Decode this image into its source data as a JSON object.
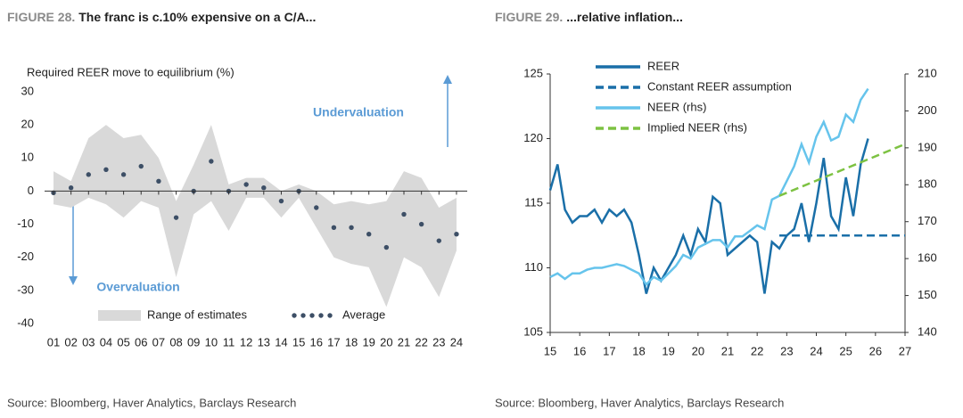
{
  "chart_data": [
    {
      "type": "line",
      "figure_label": "FIGURE 28.",
      "title": "The franc is c.10% expensive on a C/A...",
      "ylabel": "Required REER move to equilibrium (%)",
      "source": "Source: Bloomberg, Haver Analytics, Barclays Research",
      "categories": [
        "01",
        "02",
        "03",
        "04",
        "05",
        "06",
        "07",
        "08",
        "09",
        "10",
        "11",
        "12",
        "13",
        "14",
        "15",
        "16",
        "17",
        "18",
        "19",
        "20",
        "21",
        "22",
        "23",
        "24"
      ],
      "series": [
        {
          "name": "Range of estimates",
          "color": "#d9d9d9",
          "high": [
            6,
            3,
            16,
            20,
            16,
            17,
            10,
            -3,
            8,
            20,
            2,
            4,
            4,
            0,
            2,
            0,
            -4,
            -3,
            -4,
            -3,
            6,
            4,
            -5,
            -2
          ],
          "low": [
            -4,
            -5,
            -2,
            -4,
            -8,
            -3,
            -5,
            -26,
            -7,
            -3,
            -12,
            -2,
            -2,
            -8,
            -2,
            -11,
            -20,
            -22,
            -23,
            -35,
            -20,
            -23,
            -32,
            -18
          ]
        },
        {
          "name": "Average",
          "color": "#3d4f66",
          "values": [
            -0.5,
            1,
            5,
            6.5,
            5,
            7.5,
            3,
            -8,
            0,
            9,
            0,
            2,
            1,
            -3,
            0,
            -5,
            -11,
            -11,
            -13,
            -17,
            -7,
            -10,
            -15,
            -13
          ]
        }
      ],
      "ylim": [
        -40,
        30
      ],
      "yticks": [
        -40,
        -30,
        -20,
        -10,
        0,
        10,
        20,
        30
      ],
      "annotations": [
        "Undervaluation",
        "Overvaluation"
      ]
    },
    {
      "type": "line",
      "figure_label": "FIGURE 29.",
      "title": "...relative inflation...",
      "source": "Source: Bloomberg, Haver Analytics, Barclays Research",
      "xlim": [
        2015,
        2027
      ],
      "xticks": [
        {
          "value": 2015,
          "label": "15"
        },
        {
          "value": 2016,
          "label": "16"
        },
        {
          "value": 2017,
          "label": "17"
        },
        {
          "value": 2018,
          "label": "18"
        },
        {
          "value": 2019,
          "label": "19"
        },
        {
          "value": 2020,
          "label": "20"
        },
        {
          "value": 2021,
          "label": "21"
        },
        {
          "value": 2022,
          "label": "22"
        },
        {
          "value": 2023,
          "label": "23"
        },
        {
          "value": 2024,
          "label": "24"
        },
        {
          "value": 2025,
          "label": "25"
        },
        {
          "value": 2026,
          "label": "26"
        },
        {
          "value": 2027,
          "label": "27"
        }
      ],
      "ylim": [
        105,
        125
      ],
      "yticks": [
        105,
        110,
        115,
        120,
        125
      ],
      "y2lim": [
        140,
        210
      ],
      "y2ticks": [
        140,
        150,
        160,
        170,
        180,
        190,
        200,
        210
      ],
      "series": [
        {
          "name": "REER",
          "color": "#1a6fa8",
          "style": "solid",
          "x": [
            2015,
            2015.25,
            2015.5,
            2015.75,
            2016,
            2016.25,
            2016.5,
            2016.75,
            2017,
            2017.25,
            2017.5,
            2017.75,
            2018,
            2018.25,
            2018.5,
            2018.75,
            2019,
            2019.25,
            2019.5,
            2019.75,
            2020,
            2020.25,
            2020.5,
            2020.75,
            2021,
            2021.25,
            2021.5,
            2021.75,
            2022,
            2022.25,
            2022.5,
            2022.75,
            2023,
            2023.25,
            2023.5,
            2023.75,
            2024,
            2024.25,
            2024.5,
            2024.75,
            2025,
            2025.25,
            2025.5,
            2025.75
          ],
          "values": [
            116,
            118,
            114.5,
            113.5,
            114,
            114,
            114.5,
            113.5,
            114.5,
            114,
            114.5,
            113.5,
            111,
            108,
            110,
            109,
            110,
            111,
            112.5,
            111,
            113,
            112,
            115.5,
            115,
            111,
            111.5,
            112,
            112.5,
            112,
            108,
            112,
            111.5,
            112.5,
            113,
            115,
            112,
            115,
            118.5,
            114,
            113,
            117,
            114,
            118,
            120
          ]
        },
        {
          "name": "Constant REER assumption",
          "color": "#1a6fa8",
          "style": "dashed",
          "x": [
            2022.75,
            2027
          ],
          "values": [
            112.5,
            112.5
          ]
        },
        {
          "name": "NEER (rhs)",
          "color": "#66c4ec",
          "style": "solid",
          "axis": "y2",
          "x": [
            2015,
            2015.25,
            2015.5,
            2015.75,
            2016,
            2016.25,
            2016.5,
            2016.75,
            2017,
            2017.25,
            2017.5,
            2017.75,
            2018,
            2018.25,
            2018.5,
            2018.75,
            2019,
            2019.25,
            2019.5,
            2019.75,
            2020,
            2020.25,
            2020.5,
            2020.75,
            2021,
            2021.25,
            2021.5,
            2021.75,
            2022,
            2022.25,
            2022.5,
            2022.75,
            2023,
            2023.25,
            2023.5,
            2023.75,
            2024,
            2024.25,
            2024.5,
            2024.75,
            2025,
            2025.25,
            2025.5,
            2025.75
          ],
          "values": [
            155,
            156,
            154.5,
            156,
            156,
            157,
            157.5,
            157.5,
            158,
            158.5,
            158,
            157,
            156,
            153,
            155,
            154,
            156,
            158,
            161,
            160,
            163,
            164,
            165,
            165,
            163,
            166,
            166,
            167.5,
            169,
            168,
            176,
            177,
            181,
            185,
            191,
            186,
            193,
            197,
            192,
            193,
            199,
            197,
            203,
            206
          ]
        },
        {
          "name": "Implied NEER (rhs)",
          "color": "#7dc242",
          "style": "dashed",
          "axis": "y2",
          "x": [
            2022.75,
            2027
          ],
          "values": [
            177,
            191
          ]
        }
      ]
    }
  ]
}
